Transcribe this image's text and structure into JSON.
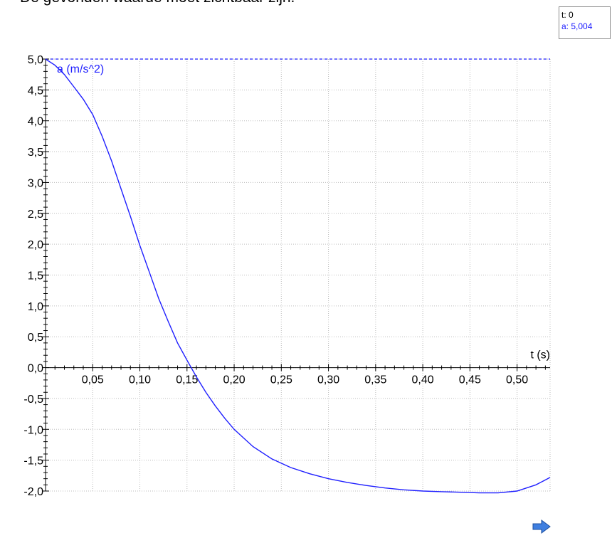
{
  "instruction": "De gevonden waarde moet zichtbaar zijn.",
  "readout": {
    "t_label": "t: 0",
    "a_label": "a: 5,004"
  },
  "colors": {
    "curve": "#1f1fff",
    "axis": "#000000",
    "grid": "#bdbdbd",
    "arrow": "#3f7fe0"
  },
  "chart_data": {
    "type": "line",
    "xlabel": "t (s)",
    "ylabel": "a (m/s^2)",
    "xlim": [
      0,
      0.535
    ],
    "ylim": [
      -2.0,
      5.0
    ],
    "x_ticks": [
      "0,05",
      "0,10",
      "0,15",
      "0,20",
      "0,25",
      "0,30",
      "0,35",
      "0,40",
      "0,45",
      "0,50"
    ],
    "y_ticks": [
      "5,0",
      "4,5",
      "4,0",
      "3,5",
      "3,0",
      "2,5",
      "2,0",
      "1,5",
      "1,0",
      "0,5",
      "0,0",
      "-0,5",
      "-1,0",
      "-1,5",
      "-2,0"
    ],
    "grid": true,
    "reference_line_y": 5.0,
    "series": [
      {
        "x": [
          0.0,
          0.01,
          0.02,
          0.03,
          0.04,
          0.05,
          0.06,
          0.07,
          0.08,
          0.09,
          0.1,
          0.11,
          0.12,
          0.13,
          0.14,
          0.15,
          0.16,
          0.17,
          0.18,
          0.19,
          0.2,
          0.22,
          0.24,
          0.26,
          0.28,
          0.3,
          0.32,
          0.34,
          0.36,
          0.38,
          0.4,
          0.42,
          0.44,
          0.46,
          0.48,
          0.5,
          0.52,
          0.535
        ],
        "y": [
          5.0,
          4.9,
          4.75,
          4.55,
          4.35,
          4.1,
          3.75,
          3.35,
          2.9,
          2.45,
          1.98,
          1.55,
          1.12,
          0.75,
          0.4,
          0.12,
          -0.15,
          -0.4,
          -0.62,
          -0.82,
          -1.0,
          -1.28,
          -1.48,
          -1.62,
          -1.72,
          -1.8,
          -1.86,
          -1.91,
          -1.95,
          -1.98,
          -2.0,
          -2.01,
          -2.02,
          -2.03,
          -2.03,
          -2.0,
          -1.9,
          -1.78
        ]
      }
    ]
  }
}
